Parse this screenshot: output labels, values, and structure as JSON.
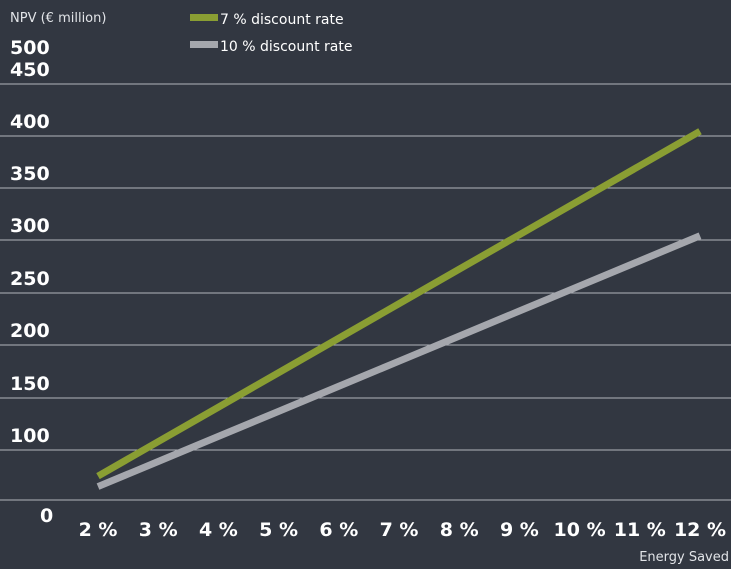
{
  "chart_data": {
    "type": "line",
    "title": "",
    "ylabel": "NPV (€ million)",
    "xlabel": "Energy Saved",
    "ylim": [
      0,
      500
    ],
    "yticks": [
      {
        "value": 0,
        "label": "0"
      },
      {
        "value": 100,
        "label": "100"
      },
      {
        "value": 150,
        "label": "150"
      },
      {
        "value": 200,
        "label": "200"
      },
      {
        "value": 250,
        "label": "250"
      },
      {
        "value": 300,
        "label": "300"
      },
      {
        "value": 350,
        "label": "350"
      },
      {
        "value": 400,
        "label": "400"
      },
      {
        "value": 450,
        "label": "450"
      },
      {
        "value": 500,
        "label": "500"
      }
    ],
    "grid": true,
    "legend_position": "top-left",
    "categories": [
      "2 %",
      "3 %",
      "4 %",
      "5 %",
      "6 %",
      "7 %",
      "8 %",
      "9 %",
      "10 %",
      "11 %",
      "12 %"
    ],
    "x": [
      2,
      3,
      4,
      5,
      6,
      7,
      8,
      9,
      10,
      11,
      12
    ],
    "series": [
      {
        "name": "7 % discount rate",
        "color": "#8a9e33",
        "values": [
          75,
          108,
          141,
          174,
          207,
          240,
          273,
          306,
          339,
          372,
          405
        ]
      },
      {
        "name": "10 % discount rate",
        "color": "#a5a7ad",
        "values": [
          65,
          89,
          113,
          137,
          161,
          185,
          209,
          233,
          257,
          281,
          305
        ]
      }
    ]
  }
}
